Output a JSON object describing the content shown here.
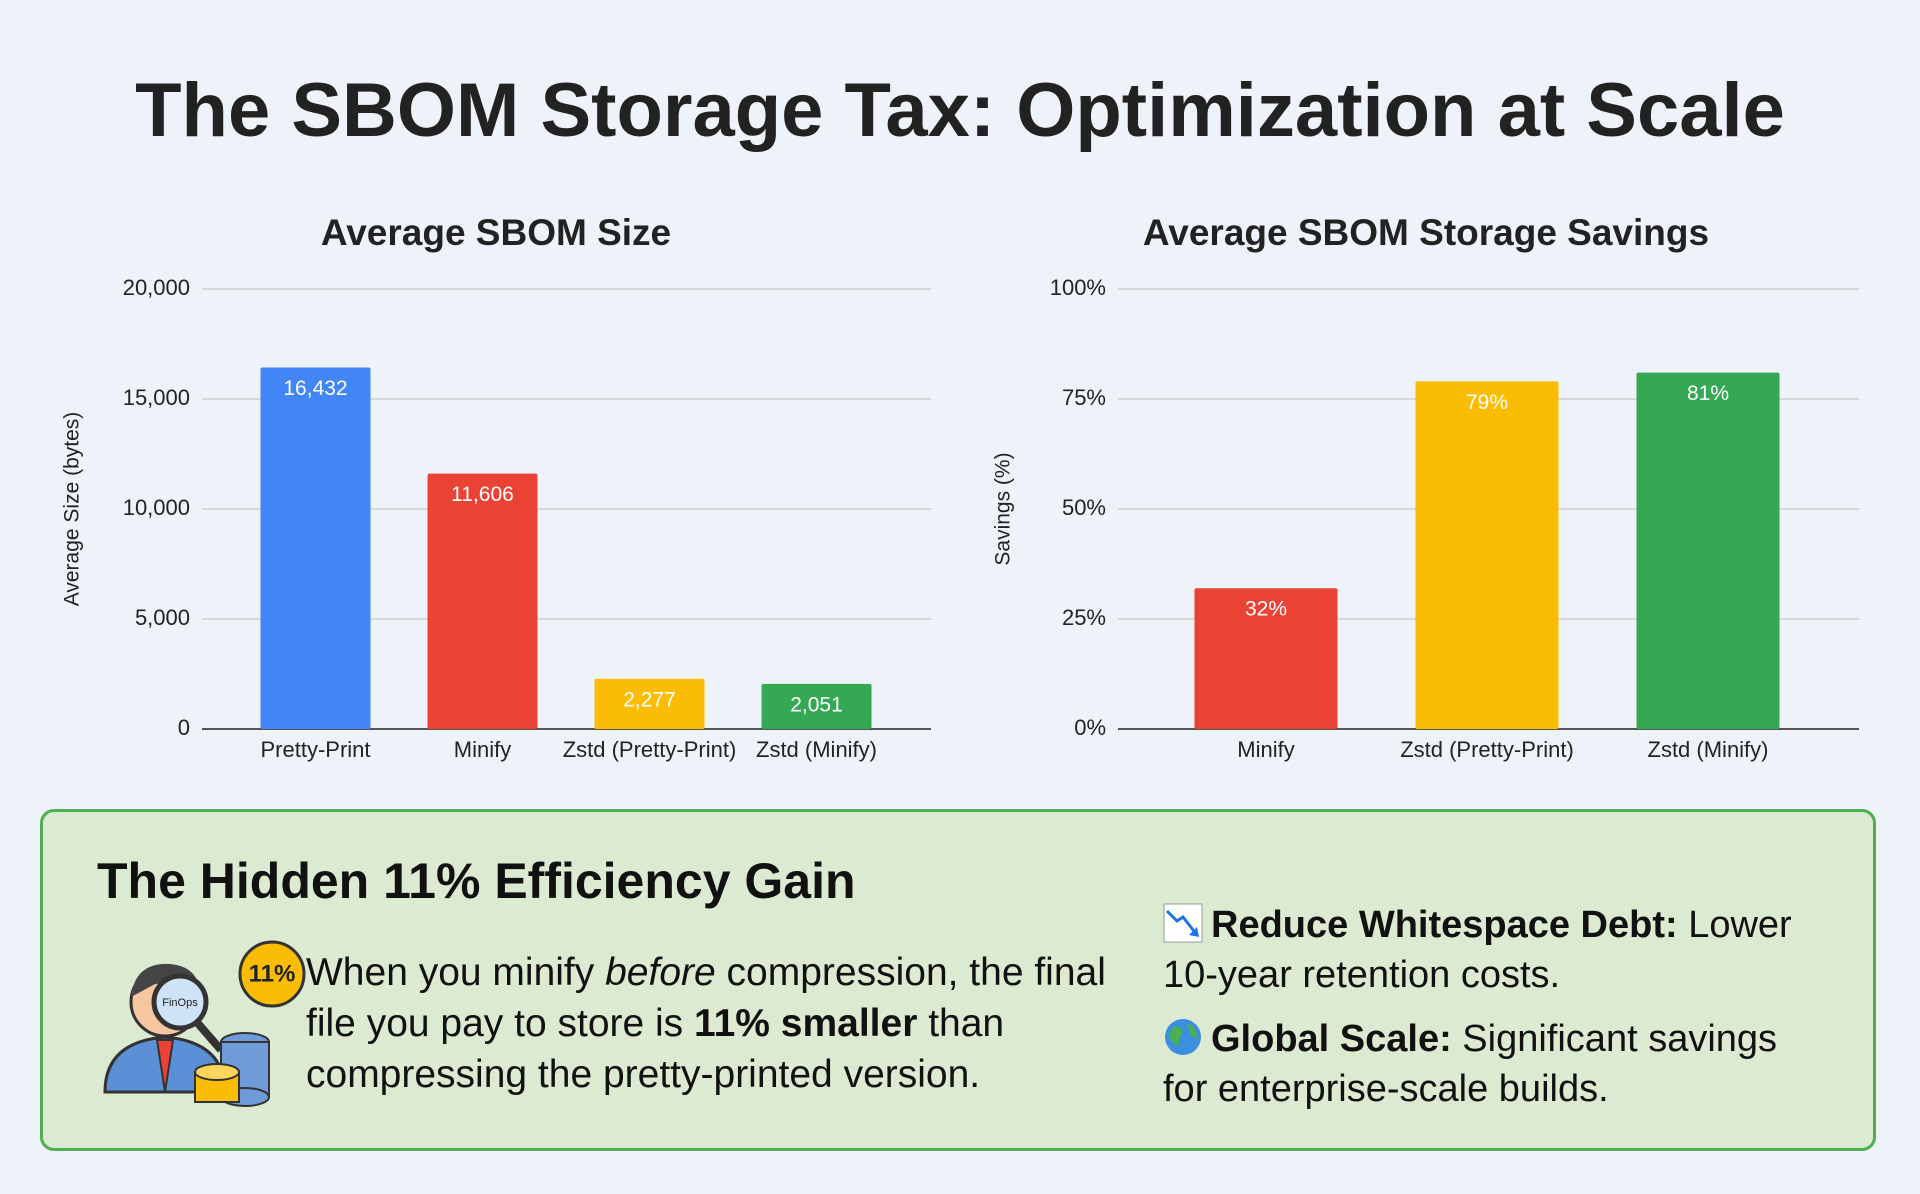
{
  "title": "The SBOM Storage Tax: Optimization at Scale",
  "chart_data": [
    {
      "type": "bar",
      "title": "Average SBOM Size",
      "y_label": "Average Size (bytes)",
      "categories": [
        "Pretty-Print",
        "Minify",
        "Zstd (Pretty-Print)",
        "Zstd (Minify)"
      ],
      "values": [
        16432,
        11606,
        2277,
        2051
      ],
      "value_labels": [
        "16,432",
        "11,606",
        "2,277",
        "2,051"
      ],
      "colors": [
        "#4285f4",
        "#ea4335",
        "#fbbc04",
        "#34a853"
      ],
      "ylim": [
        0,
        20000
      ],
      "yticks": [
        0,
        {
          "value": 5000,
          "label": "5,000"
        },
        {
          "value": 10000,
          "label": "10,000"
        },
        {
          "value": 15000,
          "label": "15,000"
        },
        {
          "value": 20000,
          "label": "20,000"
        }
      ],
      "grid": true
    },
    {
      "type": "bar",
      "title": "Average SBOM Storage Savings",
      "y_label": "Savings (%)",
      "categories": [
        "Minify",
        "Zstd (Pretty-Print)",
        "Zstd (Minify)"
      ],
      "values": [
        32,
        79,
        81
      ],
      "value_labels": [
        "32%",
        "79%",
        "81%"
      ],
      "colors": [
        "#ea4335",
        "#fbbc04",
        "#34a853"
      ],
      "ylim": [
        0,
        100
      ],
      "yticks": [
        {
          "value": 0,
          "label": "0%"
        },
        {
          "value": 25,
          "label": "25%"
        },
        {
          "value": 50,
          "label": "50%"
        },
        {
          "value": 75,
          "label": "75%"
        },
        {
          "value": 100,
          "label": "100%"
        }
      ],
      "grid": true
    }
  ],
  "callout": {
    "title": "The Hidden 11% Efficiency Gain",
    "badge": "11%",
    "lens": "FinOps",
    "body": [
      "When you minify ",
      "before",
      " compression, the final file you pay to store is ",
      "11% smaller",
      " than compressing the pretty-printed version."
    ],
    "bullets": [
      {
        "label": "Reduce Whitespace Debt:",
        "text": " Lower 10-year retention costs."
      },
      {
        "label": "Global Scale:",
        "text": " Significant savings for enterprise-scale builds."
      }
    ]
  }
}
